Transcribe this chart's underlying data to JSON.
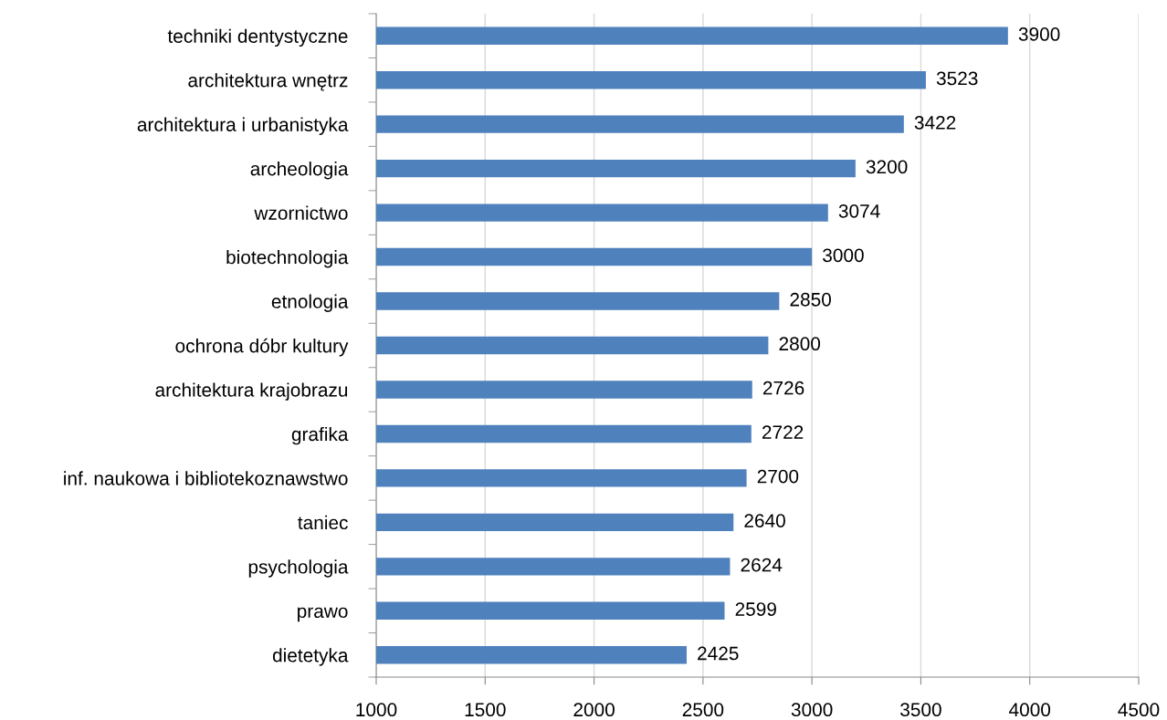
{
  "chart_data": {
    "type": "bar",
    "orientation": "horizontal",
    "categories": [
      "techniki dentystyczne",
      "architektura wnętrz",
      "architektura i urbanistyka",
      "archeologia",
      "wzornictwo",
      "biotechnologia",
      "etnologia",
      "ochrona dóbr kultury",
      "architektura krajobrazu",
      "grafika",
      "inf. naukowa i bibliotekoznawstwo",
      "taniec",
      "psychologia",
      "prawo",
      "dietetyka"
    ],
    "values": [
      3900,
      3523,
      3422,
      3200,
      3074,
      3000,
      2850,
      2800,
      2726,
      2722,
      2700,
      2640,
      2624,
      2599,
      2425
    ],
    "color": "#4f81bd",
    "xlim": [
      1000,
      4500
    ],
    "xticks": [
      1000,
      1500,
      2000,
      2500,
      3000,
      3500,
      4000,
      4500
    ],
    "grid": "x",
    "data_labels": true,
    "legend": false
  }
}
